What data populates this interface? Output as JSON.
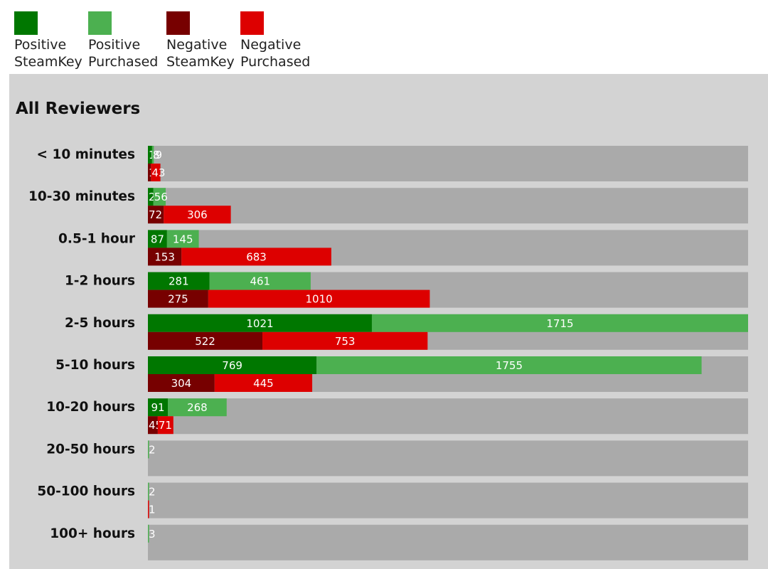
{
  "legend": [
    {
      "label": "Positive\nSteamKey",
      "color": "#007700"
    },
    {
      "label": "Positive\nPurchased",
      "color": "#4cb050"
    },
    {
      "label": "Negative\nSteamKey",
      "color": "#770000"
    },
    {
      "label": "Negative\nPurchased",
      "color": "#dd0000"
    }
  ],
  "panel": {
    "title": "All Reviewers"
  },
  "chart_data": {
    "type": "bar",
    "orientation": "horizontal",
    "stacked": true,
    "title": "All Reviewers",
    "x_max": 2736,
    "categories": [
      "< 10 minutes",
      "10-30 minutes",
      "0.5-1 hour",
      "1-2 hours",
      "2-5 hours",
      "5-10 hours",
      "10-20 hours",
      "20-50 hours",
      "50-100 hours",
      "100+ hours"
    ],
    "positive": {
      "SteamKey": [
        19,
        25,
        87,
        281,
        1021,
        769,
        91,
        0,
        0,
        0
      ],
      "Purchased": [
        8,
        56,
        145,
        461,
        1715,
        1755,
        268,
        2,
        2,
        3
      ]
    },
    "negative": {
      "SteamKey": [
        14,
        72,
        153,
        275,
        522,
        304,
        45,
        0,
        0,
        0
      ],
      "Purchased": [
        43,
        306,
        683,
        1010,
        753,
        445,
        71,
        0,
        1,
        0
      ]
    },
    "colors": {
      "positive_steamkey": "#007700",
      "positive_purchased": "#4cb050",
      "negative_steamkey": "#770000",
      "negative_purchased": "#dd0000",
      "track": "#aaaaaa",
      "panel": "#d3d3d3"
    }
  }
}
